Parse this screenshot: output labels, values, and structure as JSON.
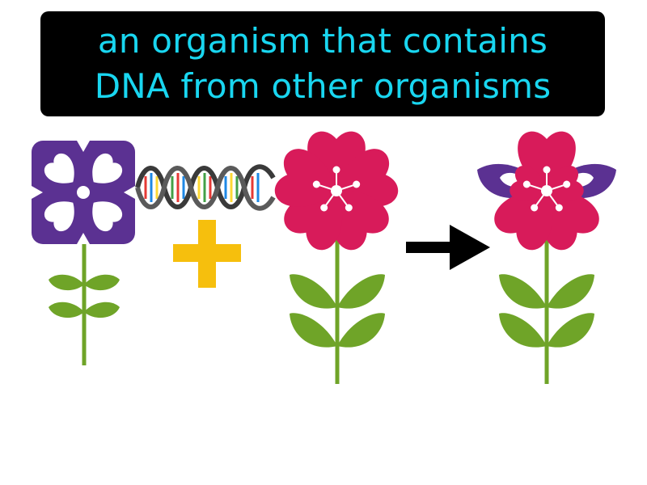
{
  "definition": {
    "line1": "an organism that contains",
    "line2": "DNA from other organisms"
  },
  "colors": {
    "caption_text": "#19d6f0",
    "caption_bg": "#000000",
    "purple_flower": "#5b3192",
    "pink_flower": "#d81b5a",
    "leaf_green": "#6fa428",
    "plus_sign": "#f6bf0d",
    "arrow": "#000000"
  },
  "icons": {
    "donor": "purple-flower-icon",
    "dna": "dna-double-helix-icon",
    "plus": "plus-icon",
    "host": "pink-flower-icon",
    "arrow": "right-arrow-icon",
    "result": "hybrid-flower-icon"
  }
}
